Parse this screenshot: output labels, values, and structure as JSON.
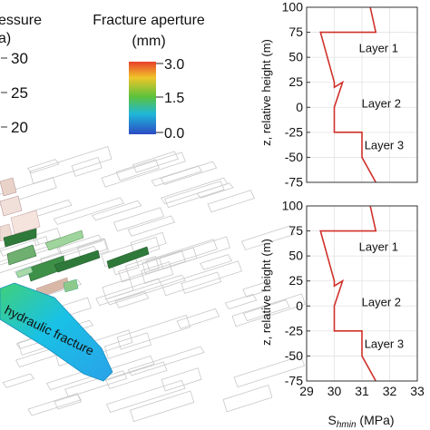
{
  "pressure_legend": {
    "title_partial": "essure",
    "unit_partial": "a)",
    "ticks": [
      "30",
      "25",
      "20"
    ]
  },
  "aperture_legend": {
    "title": "Fracture aperture",
    "unit": "(mm)",
    "ticks": [
      "3.0",
      "1.5",
      "0.0"
    ],
    "colors": [
      "#e8402a",
      "#f0c52a",
      "#5cc23a",
      "#1fb8d9",
      "#2b4bc4"
    ]
  },
  "fracture_label": "hydraulic fracture",
  "profile_top": {
    "y_axis_label": "z, relative height (m)",
    "y_ticks": [
      "100",
      "75",
      "50",
      "25",
      "0",
      "-25",
      "-50",
      "-75"
    ],
    "layers": [
      "Layer 1",
      "Layer 2",
      "Layer 3"
    ]
  },
  "profile_bottom": {
    "y_axis_label": "z, relative height (m)",
    "y_ticks": [
      "100",
      "75",
      "50",
      "25",
      "0",
      "-25",
      "-50",
      "-75"
    ],
    "x_ticks": [
      "29",
      "30",
      "31",
      "32",
      "33"
    ],
    "x_axis_label_prefix": "S",
    "x_axis_label_sub": "hmin",
    "x_axis_label_suffix": " (MPa)",
    "layers": [
      "Layer 1",
      "Layer 2",
      "Layer 3"
    ]
  },
  "chart_data": [
    {
      "type": "line",
      "x": [
        31.3,
        31.5,
        29.5,
        30.0,
        30.0,
        30.3,
        30.0,
        30.0,
        31.0,
        31.0,
        31.5
      ],
      "y": [
        100,
        75,
        75,
        25,
        20,
        25,
        0,
        -25,
        -25,
        -50,
        -75
      ],
      "xlim": [
        29,
        33
      ],
      "ylim": [
        -75,
        100
      ],
      "ylabel": "z, relative height (m)",
      "grid": true
    },
    {
      "type": "line",
      "x": [
        31.3,
        31.5,
        29.5,
        30.0,
        30.0,
        30.3,
        30.0,
        30.0,
        31.0,
        31.0,
        31.5
      ],
      "y": [
        100,
        75,
        75,
        25,
        20,
        25,
        0,
        -25,
        -25,
        -50,
        -75
      ],
      "xlim": [
        29,
        33
      ],
      "ylim": [
        -75,
        100
      ],
      "ylabel": "z, relative height (m)",
      "xlabel": "Shmin (MPa)",
      "grid": true
    }
  ]
}
